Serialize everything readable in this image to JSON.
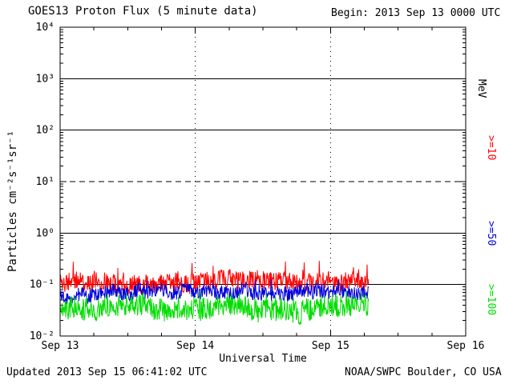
{
  "header": {
    "title": "GOES13 Proton Flux (5 minute data)",
    "begin": "Begin: 2013 Sep 13 0000 UTC"
  },
  "footer": {
    "updated": "Updated 2013 Sep 15 06:41:02 UTC",
    "credit": "NOAA/SWPC Boulder, CO USA"
  },
  "chart_data": {
    "type": "line",
    "title": "GOES13 Proton Flux (5 minute data)",
    "xlabel": "Universal Time",
    "ylabel": "Particles cm⁻²s⁻¹sr⁻¹",
    "right_axis_title": "MeV",
    "x_ticks": [
      "Sep 13",
      "Sep 14",
      "Sep 15",
      "Sep 16"
    ],
    "x_range_days": 3,
    "y_ticks": [
      "10⁴",
      "10³",
      "10²",
      "10¹",
      "10⁰",
      "10⁻¹",
      "10⁻²"
    ],
    "y_log_range": [
      4,
      -2
    ],
    "grid": "on",
    "grid_solid_exponents": [
      3,
      2,
      0,
      -1
    ],
    "grid_dashed_exponents": [
      1
    ],
    "threshold_value": 10,
    "day_gridlines": [
      1,
      2
    ],
    "cadence_minutes": 5,
    "data_start_day": 0,
    "data_end_day": 2.28,
    "series": [
      {
        "label": ">=10",
        "color": "#ff0000",
        "mean": 0.115,
        "min": 0.055,
        "max": 0.32,
        "noise": 0.4,
        "walk": 0.1,
        "spike_prob": 0.045,
        "spike_amp": 0.9,
        "seed": 11
      },
      {
        "label": ">=50",
        "color": "#0000dd",
        "mean": 0.068,
        "min": 0.038,
        "max": 0.125,
        "noise": 0.33,
        "walk": 0.08,
        "spike_prob": 0.02,
        "spike_amp": 0.45,
        "seed": 22
      },
      {
        "label": ">=100",
        "color": "#00dd00",
        "mean": 0.033,
        "min": 0.016,
        "max": 0.075,
        "noise": 0.5,
        "walk": 0.1,
        "spike_prob": 0.03,
        "spike_amp": 0.6,
        "seed": 33
      }
    ]
  }
}
